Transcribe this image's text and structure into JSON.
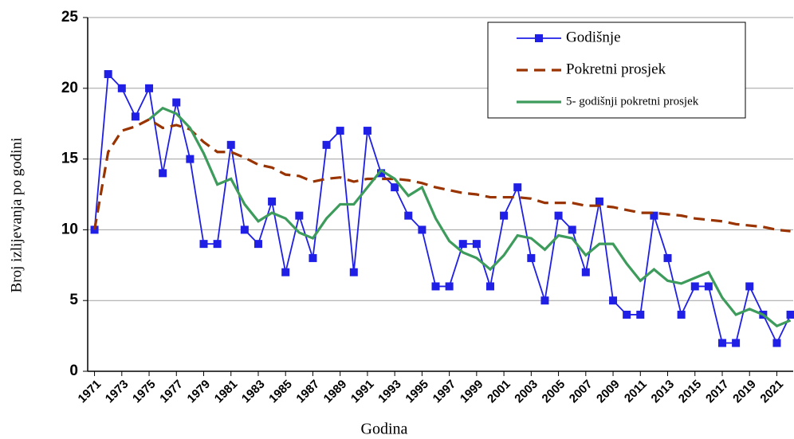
{
  "chart_data": {
    "type": "line",
    "x_label": "Godina",
    "y_label": "Broj izlijevanja po godini",
    "x": [
      1971,
      1972,
      1973,
      1974,
      1975,
      1976,
      1977,
      1978,
      1979,
      1980,
      1981,
      1982,
      1983,
      1984,
      1985,
      1986,
      1987,
      1988,
      1989,
      1990,
      1991,
      1992,
      1993,
      1994,
      1995,
      1996,
      1997,
      1998,
      1999,
      2000,
      2001,
      2002,
      2003,
      2004,
      2005,
      2006,
      2007,
      2008,
      2009,
      2010,
      2011,
      2012,
      2013,
      2014,
      2015,
      2016,
      2017,
      2018,
      2019,
      2020,
      2021,
      2022
    ],
    "series": [
      {
        "name": "Godišnje",
        "color": "#1f1fe6",
        "style": "solid",
        "marker": "square",
        "values": [
          10,
          21,
          20,
          18,
          20,
          14,
          19,
          15,
          9,
          9,
          16,
          10,
          9,
          12,
          7,
          11,
          8,
          16,
          17,
          7,
          17,
          14,
          13,
          11,
          10,
          6,
          6,
          9,
          9,
          6,
          11,
          13,
          8,
          5,
          11,
          10,
          7,
          12,
          5,
          4,
          4,
          11,
          8,
          4,
          6,
          6,
          2,
          2,
          6,
          4,
          2,
          4
        ]
      },
      {
        "name": "Pokretni prosjek",
        "color": "#993300",
        "style": "dashed",
        "marker": "none",
        "values": [
          10,
          15.5,
          17,
          17.3,
          17.8,
          17.2,
          17.4,
          17.1,
          16.2,
          15.5,
          15.5,
          15.1,
          14.6,
          14.4,
          13.9,
          13.8,
          13.4,
          13.6,
          13.7,
          13.4,
          13.6,
          13.6,
          13.6,
          13.5,
          13.3,
          13,
          12.8,
          12.6,
          12.5,
          12.3,
          12.3,
          12.3,
          12.2,
          11.9,
          11.9,
          11.9,
          11.7,
          11.7,
          11.6,
          11.4,
          11.2,
          11.2,
          11.1,
          11,
          10.8,
          10.7,
          10.6,
          10.4,
          10.3,
          10.2,
          10,
          9.9
        ]
      },
      {
        "name": "5- godišnji pokretni prosjek",
        "color": "#3d9b5b",
        "style": "solid",
        "marker": "none",
        "values": [
          null,
          null,
          null,
          null,
          17.8,
          18.6,
          18.2,
          17.2,
          15.4,
          13.2,
          13.6,
          11.8,
          10.6,
          11.2,
          10.8,
          9.8,
          9.4,
          10.8,
          11.8,
          11.8,
          13,
          14.2,
          13.6,
          12.4,
          13,
          10.8,
          9.2,
          8.4,
          8,
          7.2,
          8.2,
          9.6,
          9.4,
          8.6,
          9.6,
          9.4,
          8.2,
          9,
          9,
          7.6,
          6.4,
          7.2,
          6.4,
          6.2,
          6.6,
          7,
          5.2,
          4,
          4.4,
          4,
          3.2,
          3.6
        ]
      }
    ],
    "xlim": [
      1970.5,
      2022.2
    ],
    "xticks": [
      1971,
      1973,
      1975,
      1977,
      1979,
      1981,
      1983,
      1985,
      1987,
      1989,
      1991,
      1993,
      1995,
      1997,
      1999,
      2001,
      2003,
      2005,
      2007,
      2009,
      2011,
      2013,
      2015,
      2017,
      2019,
      2021
    ],
    "ylim": [
      0,
      25
    ],
    "yticks": [
      0,
      5,
      10,
      15,
      20,
      25
    ],
    "grid": true,
    "legend": "upper right"
  }
}
